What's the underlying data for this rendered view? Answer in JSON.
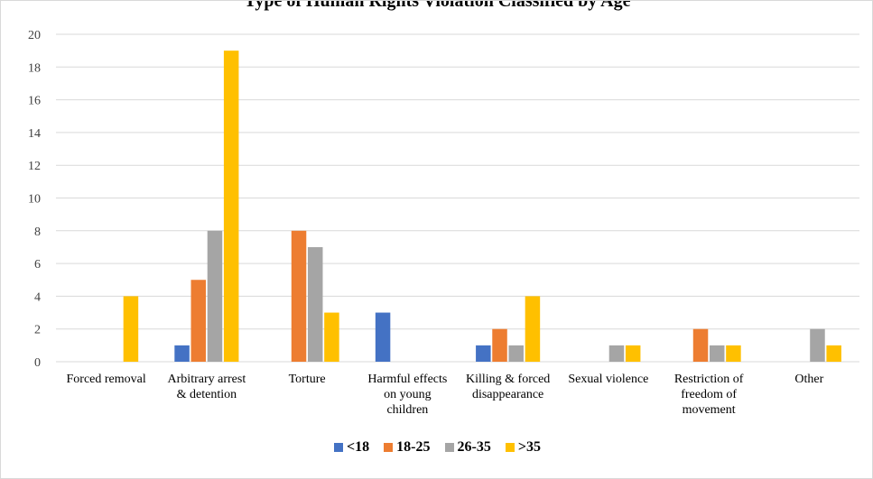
{
  "chart_data": {
    "type": "bar",
    "title": "Type of Human Rights Violation Classified by Age",
    "xlabel": "",
    "ylabel": "",
    "ylim": [
      0,
      20
    ],
    "yticks": [
      0,
      2,
      4,
      6,
      8,
      10,
      12,
      14,
      16,
      18,
      20
    ],
    "grid": true,
    "legend_position": "bottom",
    "categories": [
      [
        "Forced removal"
      ],
      [
        "Arbitrary arrest",
        "& detention"
      ],
      [
        "Torture"
      ],
      [
        "Harmful effects",
        "on young",
        "children"
      ],
      [
        "Killing & forced",
        "disappearance"
      ],
      [
        "Sexual violence"
      ],
      [
        "Restriction of",
        "freedom of",
        "movement"
      ],
      [
        "Other"
      ]
    ],
    "series": [
      {
        "name": "<18",
        "color": "#4472c4",
        "values": [
          0,
          1,
          0,
          3,
          1,
          0,
          0,
          0
        ]
      },
      {
        "name": "18-25",
        "color": "#ed7d31",
        "values": [
          0,
          5,
          8,
          0,
          2,
          0,
          2,
          0
        ]
      },
      {
        "name": "26-35",
        "color": "#a5a5a5",
        "values": [
          0,
          8,
          7,
          0,
          1,
          1,
          1,
          2
        ]
      },
      {
        "name": ">35",
        "color": "#ffc000",
        "values": [
          4,
          19,
          3,
          0,
          4,
          1,
          1,
          1
        ]
      }
    ]
  }
}
